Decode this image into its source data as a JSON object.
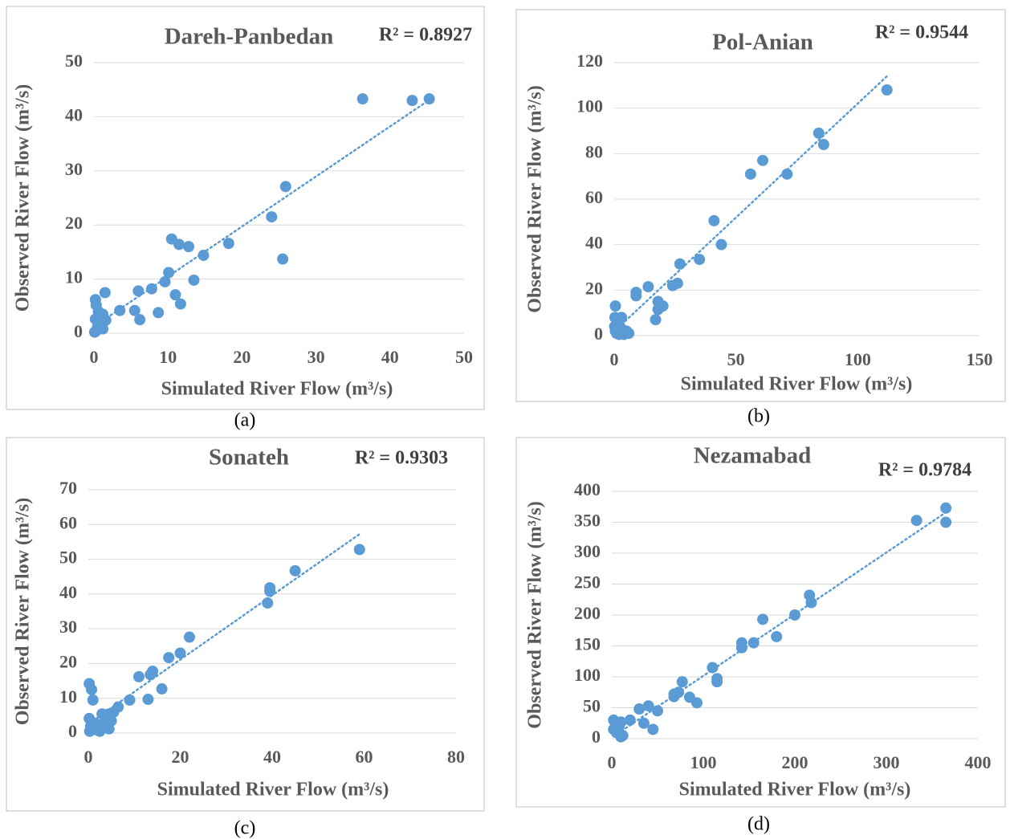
{
  "chart_data": [
    {
      "type": "scatter",
      "title": "Dareh-Panbedan",
      "annotation": "R² = 0.8927",
      "x_label": "Simulated River Flow (m³/s)",
      "y_label": "Observed River Flow (m³/s)",
      "caption": "(a)",
      "color": "#5b9bd5",
      "trendline": "linear",
      "grid": true,
      "xlim": [
        0,
        50
      ],
      "ylim": [
        0,
        50
      ],
      "xticks": [
        0,
        10,
        20,
        30,
        40,
        50
      ],
      "yticks": [
        0,
        10,
        20,
        30,
        40,
        50
      ],
      "x": [
        36.3,
        43,
        45.3,
        25.9,
        24,
        25.5,
        18.2,
        14.8,
        10.5,
        11.5,
        12.8,
        10.1,
        9.6,
        13.5,
        7.8,
        6,
        11,
        11.7,
        8.7,
        5.5,
        3.5,
        6.2,
        1.5,
        0.2,
        0.3,
        0.6,
        0.8,
        1.2,
        1.6,
        0.2,
        1,
        0.5,
        1.2,
        0.3,
        0.1,
        0.8
      ],
      "values": [
        43.3,
        43,
        43.3,
        27.1,
        21.5,
        13.7,
        16.6,
        14.4,
        17.4,
        16.4,
        16,
        11.2,
        9.5,
        9.8,
        8.2,
        7.8,
        7.1,
        5.4,
        3.8,
        4.2,
        4.2,
        2.5,
        7.5,
        6.2,
        5.2,
        4,
        3.3,
        3.5,
        2.4,
        2.6,
        1.8,
        1.2,
        0.8,
        0.4,
        0.2,
        2.2
      ]
    },
    {
      "type": "scatter",
      "title": "Pol-Anian",
      "annotation": "R² = 0.9544",
      "x_label": "Simulated River Flow (m³/s)",
      "y_label": "Observed River Flow (m³/s)",
      "caption": "(b)",
      "color": "#5b9bd5",
      "trendline": "linear",
      "grid": true,
      "xlim": [
        0,
        150
      ],
      "ylim": [
        0,
        120
      ],
      "xticks": [
        0,
        50,
        100,
        150
      ],
      "yticks": [
        0,
        20,
        40,
        60,
        80,
        100,
        120
      ],
      "x": [
        112,
        84,
        86,
        71,
        56,
        61,
        41,
        44,
        35,
        27,
        26,
        24,
        14,
        9,
        9,
        18,
        20,
        18,
        17,
        0.5,
        0.3,
        1,
        3,
        2,
        3,
        5,
        6,
        4,
        1,
        0.5,
        2,
        0.2
      ],
      "values": [
        108,
        89,
        84,
        71,
        71,
        77,
        50.5,
        40,
        33.5,
        31.5,
        23,
        22,
        21.5,
        19,
        17.5,
        15,
        13,
        11.5,
        7,
        13,
        8,
        7,
        8,
        5,
        3,
        2,
        1,
        0.5,
        1,
        2,
        0.5,
        4
      ]
    },
    {
      "type": "scatter",
      "title": "Sonateh",
      "annotation": "R² = 0.9303",
      "x_label": "Simulated River Flow (m³/s)",
      "y_label": "Observed River Flow (m³/s)",
      "caption": "(c)",
      "color": "#5b9bd5",
      "trendline": "linear",
      "grid": true,
      "xlim": [
        0,
        80
      ],
      "ylim": [
        0,
        70
      ],
      "xticks": [
        0,
        20,
        40,
        60,
        80
      ],
      "yticks": [
        0,
        10,
        20,
        30,
        40,
        50,
        60,
        70
      ],
      "x": [
        59,
        45,
        39.5,
        39.5,
        39,
        22,
        20,
        17.5,
        14,
        13.5,
        11,
        13,
        16,
        9,
        6.5,
        5.5,
        4.5,
        3,
        5,
        3.5,
        4.5,
        2,
        3,
        1,
        0.7,
        0.2,
        0.2,
        0.5,
        1,
        0.3,
        1.5,
        2.5
      ],
      "values": [
        52.8,
        46.7,
        41.8,
        40.8,
        37.4,
        27.6,
        23,
        21.7,
        17.8,
        16.8,
        16.2,
        9.7,
        12.7,
        9.5,
        7.5,
        6,
        5.5,
        5.5,
        3.5,
        3,
        1.2,
        0.8,
        1.5,
        9.5,
        12.5,
        14.2,
        4.2,
        2,
        1.5,
        0.5,
        2.8,
        0.5
      ]
    },
    {
      "type": "scatter",
      "title": "Nezamabad",
      "annotation": "R² = 0.9784",
      "x_label": "Simulated River Flow (m³/s)",
      "y_label": "Observed River Flow (m³/s)",
      "caption": "(d)",
      "color": "#5b9bd5",
      "trendline": "linear",
      "grid": true,
      "xlim": [
        0,
        400
      ],
      "ylim": [
        0,
        400
      ],
      "xticks": [
        0,
        100,
        200,
        300,
        400
      ],
      "yticks": [
        0,
        50,
        100,
        150,
        200,
        250,
        300,
        350,
        400
      ],
      "x": [
        365,
        333,
        365,
        216,
        218,
        200,
        165,
        180,
        155,
        142,
        142,
        110,
        115,
        115,
        77,
        68,
        73,
        68,
        85,
        93,
        50,
        40,
        30,
        35,
        45,
        20,
        10,
        2,
        2,
        5,
        8,
        12,
        10
      ],
      "values": [
        373,
        353,
        350,
        232,
        220,
        200,
        193,
        165,
        155,
        155,
        147,
        115,
        97,
        92,
        92,
        72,
        75,
        68,
        67,
        58,
        45,
        53,
        48,
        25,
        15,
        30,
        27,
        30,
        15,
        10,
        20,
        5,
        3
      ]
    }
  ]
}
